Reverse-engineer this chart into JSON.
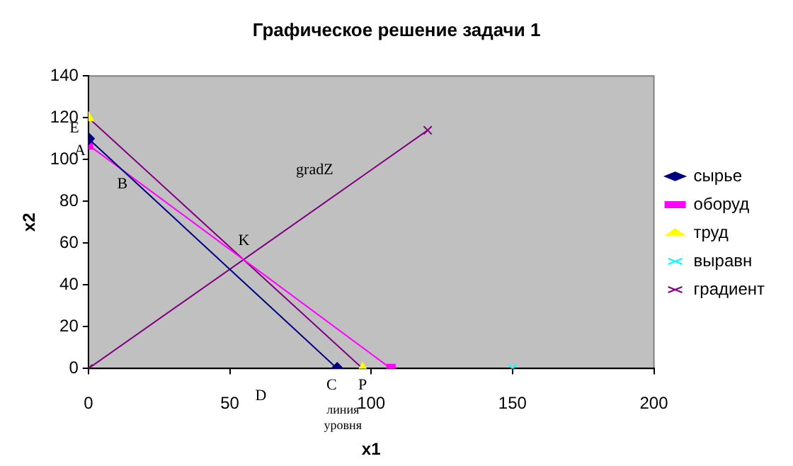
{
  "chart_data": {
    "type": "line",
    "title": "Графическое решение задачи 1",
    "xlabel": "x1",
    "ylabel": "x2",
    "xlim": [
      0,
      200
    ],
    "xticks": [
      0,
      50,
      100,
      150,
      200
    ],
    "ylim": [
      0,
      140
    ],
    "yticks": [
      0,
      20,
      40,
      60,
      80,
      100,
      120,
      140
    ],
    "grid": false,
    "legend": "right",
    "series": [
      {
        "name": "сырье",
        "color": "#000080",
        "marker": "diamond",
        "x": [
          0,
          88
        ],
        "values": [
          110,
          0
        ]
      },
      {
        "name": "оборуд",
        "color": "#ff00ff",
        "marker": "square",
        "x": [
          0,
          107
        ],
        "values": [
          107,
          0
        ]
      },
      {
        "name": "труд",
        "color": "#800080",
        "colors": [
          "#ffff00",
          "#ffff00"
        ],
        "marker": "triangle",
        "x": [
          0,
          97
        ],
        "values": [
          120,
          0
        ]
      },
      {
        "name": "выравн",
        "color": "#00ffff",
        "marker": "cross",
        "x": [
          150
        ],
        "values": [
          0
        ]
      },
      {
        "name": "градиент",
        "color": "#800080",
        "marker": "cross",
        "x": [
          0,
          120
        ],
        "values": [
          0,
          114
        ]
      }
    ],
    "annotations": [
      "E",
      "A",
      "B",
      "K",
      "gradZ",
      "C",
      "P",
      "D",
      "линия уровня"
    ]
  }
}
